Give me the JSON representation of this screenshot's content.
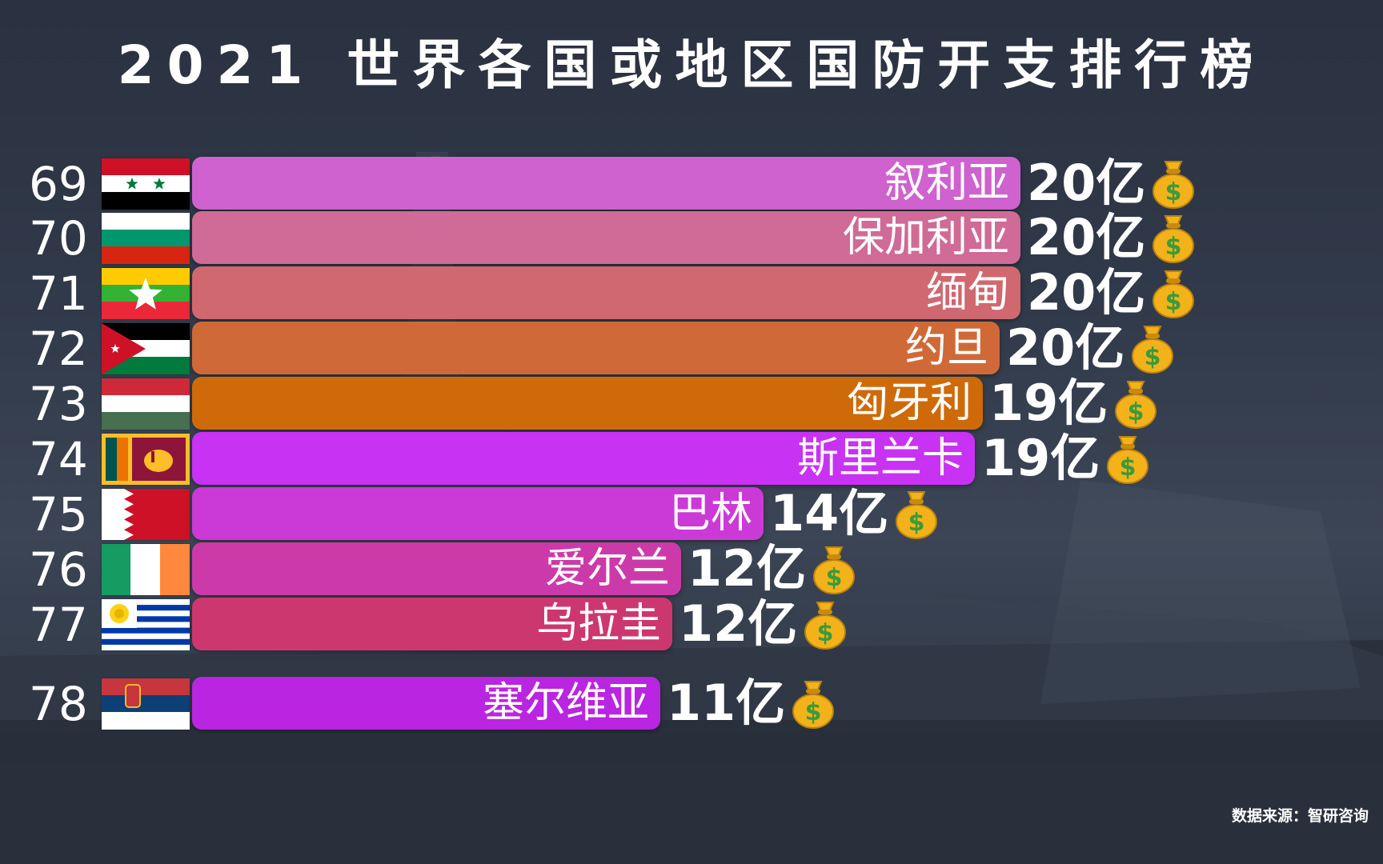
{
  "title": "2021 世界各国或地区国防开支排行榜",
  "ghost_value": "19亿",
  "source": "数据来源：智研咨询",
  "colors": {
    "background": "#313a4a",
    "money_bag": "#f3b21a",
    "dollar": "#3c9a3a"
  },
  "chart_data": {
    "type": "bar",
    "orientation": "horizontal",
    "unit": "亿",
    "xlim": [
      0,
      20
    ],
    "categories": [
      "叙利亚",
      "保加利亚",
      "缅甸",
      "约旦",
      "匈牙利",
      "斯里兰卡",
      "巴林",
      "爱尔兰",
      "乌拉圭",
      "塞尔维亚"
    ],
    "ranks": [
      "69",
      "70",
      "71",
      "72",
      "73",
      "74",
      "75",
      "76",
      "77",
      "78"
    ],
    "values": [
      20,
      20,
      20,
      19.5,
      19.1,
      18.9,
      13.8,
      11.8,
      11.6,
      11.3
    ],
    "value_labels": [
      "20亿",
      "20亿",
      "20亿",
      "20亿",
      "19亿",
      "19亿",
      "14亿",
      "12亿",
      "12亿",
      "11亿"
    ],
    "bar_colors": [
      "#cf62cf",
      "#d06a96",
      "#d06870",
      "#cf6a38",
      "#cf6a0a",
      "#c832f2",
      "#cb3ad6",
      "#cc3aaa",
      "#cd3770",
      "#b925e0"
    ],
    "flags": [
      "syria",
      "bulgaria",
      "myanmar",
      "jordan",
      "hungary",
      "sri-lanka",
      "bahrain",
      "ireland",
      "uruguay",
      "serbia"
    ]
  }
}
